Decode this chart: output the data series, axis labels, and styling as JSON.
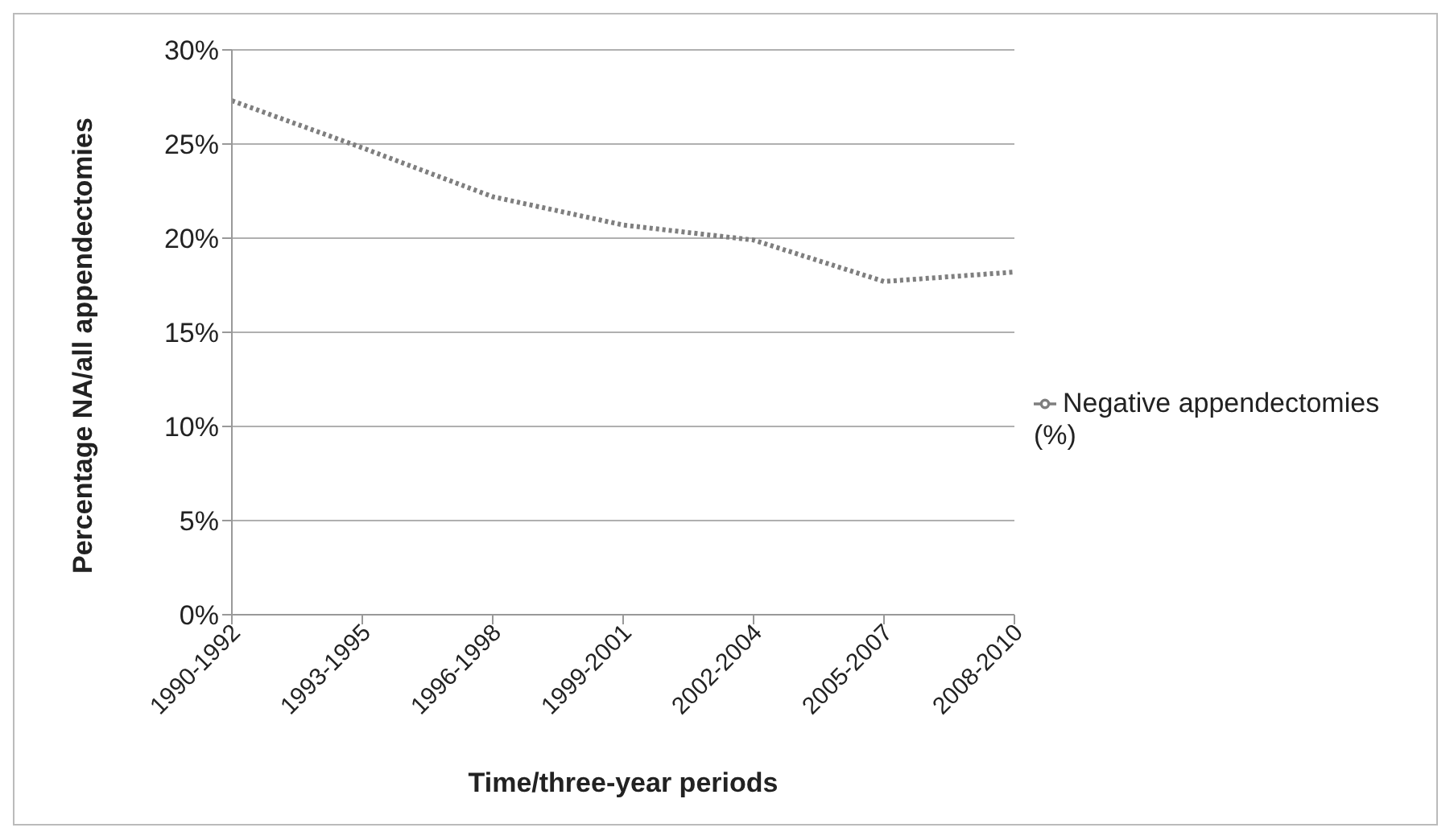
{
  "chart_data": {
    "type": "line",
    "xlabel": "Time/three-year periods",
    "ylabel": "Percentage NA/all appendectomies",
    "categories": [
      "1990-1992",
      "1993-1995",
      "1996-1998",
      "1999-2001",
      "2002-2004",
      "2005-2007",
      "2008-2010"
    ],
    "series": [
      {
        "name": "Negative appendectomies (%)",
        "color": "#7f7f7f",
        "values": [
          27.3,
          24.8,
          22.2,
          20.7,
          19.9,
          17.7,
          18.2
        ]
      }
    ],
    "ylim": [
      0,
      30
    ],
    "yticks": [
      {
        "value": 0,
        "label": "0%"
      },
      {
        "value": 5,
        "label": "5%"
      },
      {
        "value": 10,
        "label": "10%"
      },
      {
        "value": 15,
        "label": "15%"
      },
      {
        "value": 20,
        "label": "20%"
      },
      {
        "value": 25,
        "label": "25%"
      },
      {
        "value": 30,
        "label": "30%"
      }
    ],
    "grid": "y",
    "legend": "right",
    "marker": "none",
    "line_style": "dotted"
  }
}
